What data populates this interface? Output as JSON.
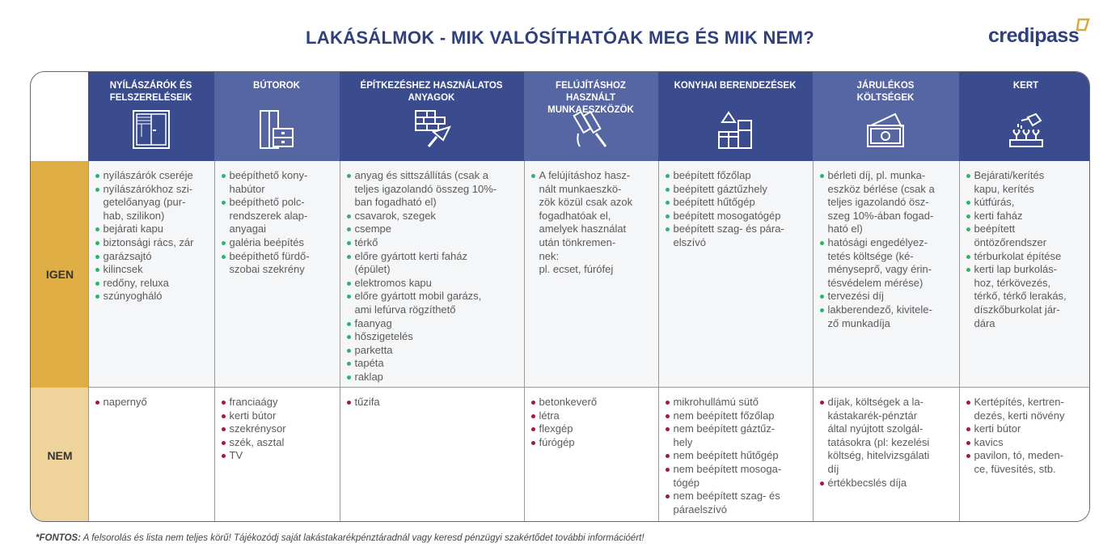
{
  "title": "LAKÁSÁLMOK - MIK VALÓSÍTHATÓAK MEG ÉS MIK NEM?",
  "logo": "credipass",
  "colors": {
    "header_dark": "#3a4c8e",
    "header_light": "#5566a2",
    "igen": "#dfae45",
    "nem": "#eed49c",
    "bullet_yes": "#2fb36b",
    "bullet_no": "#a3154b"
  },
  "rows": {
    "yes": "IGEN",
    "no": "NEM"
  },
  "columns": [
    {
      "header": "NYÍLÁSZÁRÓK ÉS\nFELSZERELÉSEIK",
      "icon": "window-icon",
      "yes": [
        "nyílászárók cseréje",
        "nyílászárókhoz szi-\ngetelőanyag (pur-\nhab, szilikon)",
        "bejárati kapu",
        "biztonsági rács, zár",
        "garázsajtó",
        "kilincsek",
        "redőny, reluxa",
        "szúnyogháló"
      ],
      "no": [
        "napernyő"
      ]
    },
    {
      "header": "BÚTOROK",
      "icon": "furniture-icon",
      "yes": [
        "beépíthető kony-\nhabútor",
        "beépíthető polc-\nrendszerek alap-\nanyagai",
        "galéria beépítés",
        "beépíthető fürdő-\nszobai szekrény"
      ],
      "no": [
        "franciaágy",
        "kerti bútor",
        "szekrénysor",
        "szék, asztal",
        "TV"
      ]
    },
    {
      "header": "ÉPÍTKEZÉSHEZ HASZNÁLATOS\nANYAGOK",
      "icon": "brick-trowel-icon",
      "yes": [
        "anyag és sittszállítás (csak a\nteljes igazolandó összeg 10%-\nban fogadható el)",
        "csavarok, szegek",
        "csempe",
        "térkő",
        "előre gyártott kerti faház\n(épület)",
        "elektromos kapu",
        "előre gyártott mobil garázs,\nami lefúrva rögzíthető",
        "faanyag",
        "hőszigetelés",
        "parketta",
        "tapéta",
        "raklap"
      ],
      "no": [
        "tűzifa"
      ]
    },
    {
      "header": "FELÚJÍTÁSHOZ\nHASZNÁLT\nMUNKAESZKÖZÖK",
      "icon": "paint-roller-icon",
      "yes": [
        "A felújításhoz hasz-\nnált munkaeszkö-\nzök közül csak azok\nfogadhatóak el,\namelyek használat\nután tönkremen-\nnek:\npl. ecset, fúrófej"
      ],
      "no": [
        "betonkeverő",
        "létra",
        "flexgép",
        "fúrógép"
      ]
    },
    {
      "header": "KONYHAI BERENDEZÉSEK",
      "icon": "kitchen-appliances-icon",
      "yes": [
        "beépített főzőlap",
        "beépített gáztűzhely",
        "beépített hűtőgép",
        "beépített mosogatógép",
        "beépített szag- és pára-\nelszívó"
      ],
      "no": [
        "mikrohullámú sütő",
        "nem beépített főzőlap",
        "nem beépített gáztűz-\nhely",
        "nem beépített hűtőgép",
        "nem beépített mosoga-\ntógép",
        "nem beépített szag- és\npáraelszívó"
      ]
    },
    {
      "header": "JÁRULÉKOS\nKÖLTSÉGEK",
      "icon": "money-icon",
      "yes": [
        "bérleti díj, pl. munka-\neszköz bérlése (csak a\nteljes igazolandó ösz-\nszeg 10%-ában fogad-\nható el)",
        "hatósági engedélyez-\ntetés költsége (ké-\nményseprő, vagy érin-\ntésvédelem mérése)",
        "tervezési díj",
        "lakberendező, kivitele-\nző munkadíja"
      ],
      "no": [
        "díjak, költségek a la-\nkástakarék-pénztár\náltal nyújtott szolgál-\ntatásokra (pl: kezelési\nköltség, hitelvizsgálati\ndíj",
        "értékbecslés díja"
      ]
    },
    {
      "header": "KERT",
      "icon": "garden-watering-icon",
      "yes": [
        "Bejárati/kerítés\nkapu, kerítés",
        "kútfúrás,",
        "kerti faház",
        "beépített\nöntözőrendszer",
        "térburkolat építése",
        "kerti lap burkolás-\nhoz, térkövezés,\ntérkő, térkő lerakás,\ndíszkőburkolat jár-\ndára"
      ],
      "no": [
        "Kertépítés, kertren-\ndezés, kerti növény",
        "kerti bútor",
        "kavics",
        "pavilon, tó, meden-\nce, füvesítés, stb."
      ]
    }
  ],
  "note": {
    "label": "*FONTOS:",
    "text": " A felsorolás és lista nem teljes körű! Tájékozódj saját lakástakarékpénztáradnál vagy keresd pénzügyi szakértődet további információért!"
  }
}
